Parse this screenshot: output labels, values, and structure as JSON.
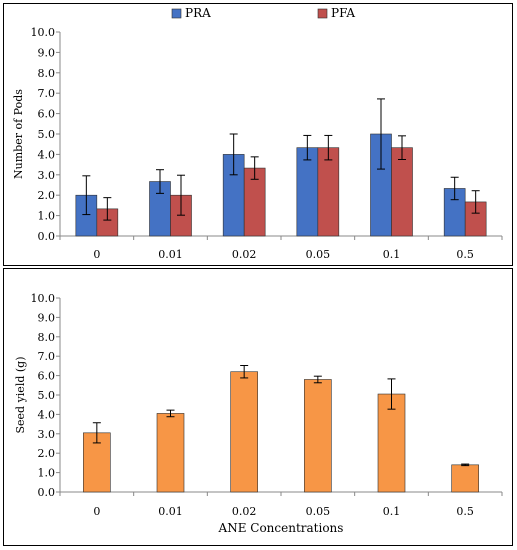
{
  "chart_data": [
    {
      "type": "bar",
      "title": "",
      "xlabel": "",
      "ylabel": "Number of Pods",
      "categories": [
        "0",
        "0.01",
        "0.02",
        "0.05",
        "0.1",
        "0.5"
      ],
      "series": [
        {
          "name": "PRA",
          "color": "#4472c4",
          "values": [
            2.0,
            2.67,
            4.0,
            4.33,
            5.0,
            2.33
          ],
          "errors": [
            0.95,
            0.58,
            1.0,
            0.6,
            1.72,
            0.55
          ]
        },
        {
          "name": "PFA",
          "color": "#c0504d",
          "values": [
            1.33,
            2.0,
            3.33,
            4.33,
            4.33,
            1.67
          ],
          "errors": [
            0.55,
            0.98,
            0.55,
            0.6,
            0.58,
            0.55
          ]
        }
      ],
      "ylim": [
        0,
        10
      ],
      "yticks": [
        "0.0",
        "1.0",
        "2.0",
        "3.0",
        "4.0",
        "5.0",
        "6.0",
        "7.0",
        "8.0",
        "9.0",
        "10.0"
      ],
      "legend": "top-center",
      "grid": false
    },
    {
      "type": "bar",
      "title": "",
      "xlabel": "ANE Concentrations",
      "ylabel": "Seed yield (g)",
      "categories": [
        "0",
        "0.01",
        "0.02",
        "0.05",
        "0.1",
        "0.5"
      ],
      "series": [
        {
          "color": "#f79646",
          "values": [
            3.05,
            4.05,
            6.2,
            5.8,
            5.05,
            1.4
          ],
          "errors": [
            0.52,
            0.17,
            0.32,
            0.17,
            0.78,
            0.04
          ]
        }
      ],
      "ylim": [
        0,
        10
      ],
      "yticks": [
        "0.0",
        "1.0",
        "2.0",
        "3.0",
        "4.0",
        "5.0",
        "6.0",
        "7.0",
        "8.0",
        "9.0",
        "10.0"
      ],
      "legend": "none",
      "grid": false
    }
  ]
}
